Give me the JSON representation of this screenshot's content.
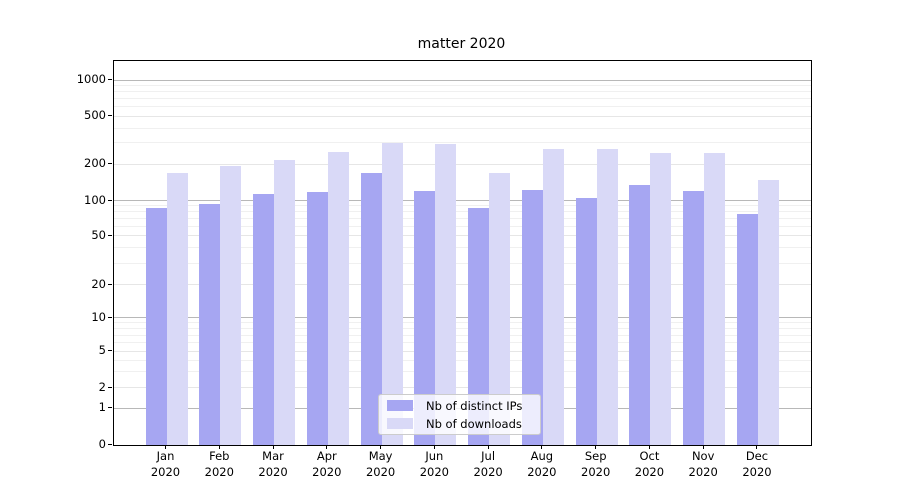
{
  "title": "matter 2020",
  "legend": {
    "items": [
      {
        "label": "Nb of distinct IPs",
        "color": "#a6a6f2"
      },
      {
        "label": "Nb of downloads",
        "color": "#d9d9f7"
      }
    ],
    "position": "lower center"
  },
  "chart_data": {
    "type": "bar",
    "title": "matter 2020",
    "categories": [
      "Jan 2020",
      "Feb 2020",
      "Mar 2020",
      "Apr 2020",
      "May 2020",
      "Jun 2020",
      "Jul 2020",
      "Aug 2020",
      "Sep 2020",
      "Oct 2020",
      "Nov 2020",
      "Dec 2020"
    ],
    "series": [
      {
        "name": "Nb of distinct IPs",
        "color": "#a6a6f2",
        "values": [
          87,
          95,
          114,
          119,
          170,
          120,
          88,
          124,
          105,
          136,
          121,
          78
        ]
      },
      {
        "name": "Nb of downloads",
        "color": "#d9d9f7",
        "values": [
          170,
          193,
          220,
          257,
          300,
          295,
          171,
          270,
          270,
          250,
          250,
          150
        ]
      }
    ],
    "xlabel": "",
    "ylabel": "",
    "yscale": "symlog",
    "yticks": [
      0,
      1,
      2,
      5,
      10,
      20,
      50,
      100,
      200,
      500,
      1000
    ],
    "ylim": [
      0,
      1460
    ],
    "grid": true,
    "legend_position": "lower center"
  }
}
